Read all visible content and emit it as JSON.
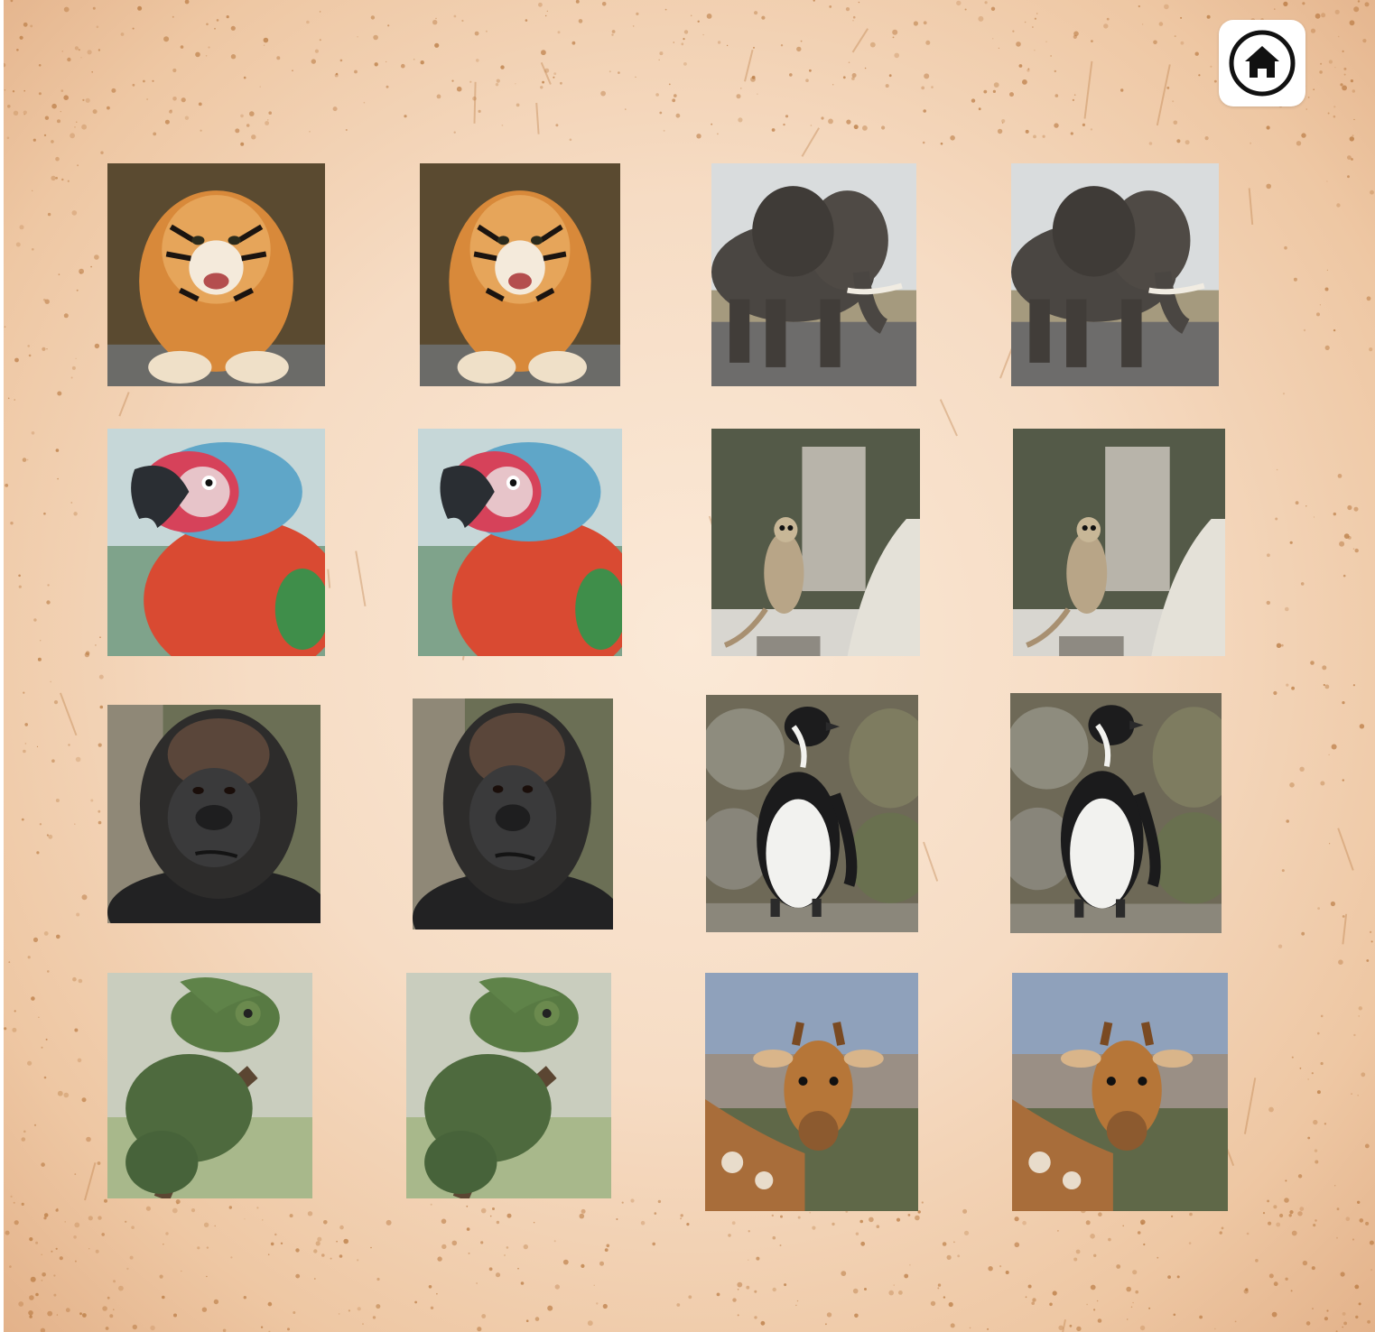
{
  "game": {
    "home_icon": "home-icon",
    "cards": [
      {
        "animal": "tiger",
        "icon": "tiger-photo"
      },
      {
        "animal": "tiger",
        "icon": "tiger-photo"
      },
      {
        "animal": "elephant",
        "icon": "elephant-photo"
      },
      {
        "animal": "elephant",
        "icon": "elephant-photo"
      },
      {
        "animal": "parrot",
        "icon": "parrot-photo"
      },
      {
        "animal": "parrot",
        "icon": "parrot-photo"
      },
      {
        "animal": "meerkat",
        "icon": "meerkat-photo"
      },
      {
        "animal": "meerkat",
        "icon": "meerkat-photo"
      },
      {
        "animal": "gorilla",
        "icon": "gorilla-photo"
      },
      {
        "animal": "gorilla",
        "icon": "gorilla-photo"
      },
      {
        "animal": "penguin",
        "icon": "penguin-photo"
      },
      {
        "animal": "penguin",
        "icon": "penguin-photo"
      },
      {
        "animal": "chameleon",
        "icon": "chameleon-photo"
      },
      {
        "animal": "chameleon",
        "icon": "chameleon-photo"
      },
      {
        "animal": "giraffe",
        "icon": "giraffe-photo"
      },
      {
        "animal": "giraffe",
        "icon": "giraffe-photo"
      }
    ]
  },
  "colors": {
    "background": "#f6dcc4",
    "speckle": "#b8783f",
    "home_button": "#ffffff",
    "home_icon": "#111111"
  }
}
